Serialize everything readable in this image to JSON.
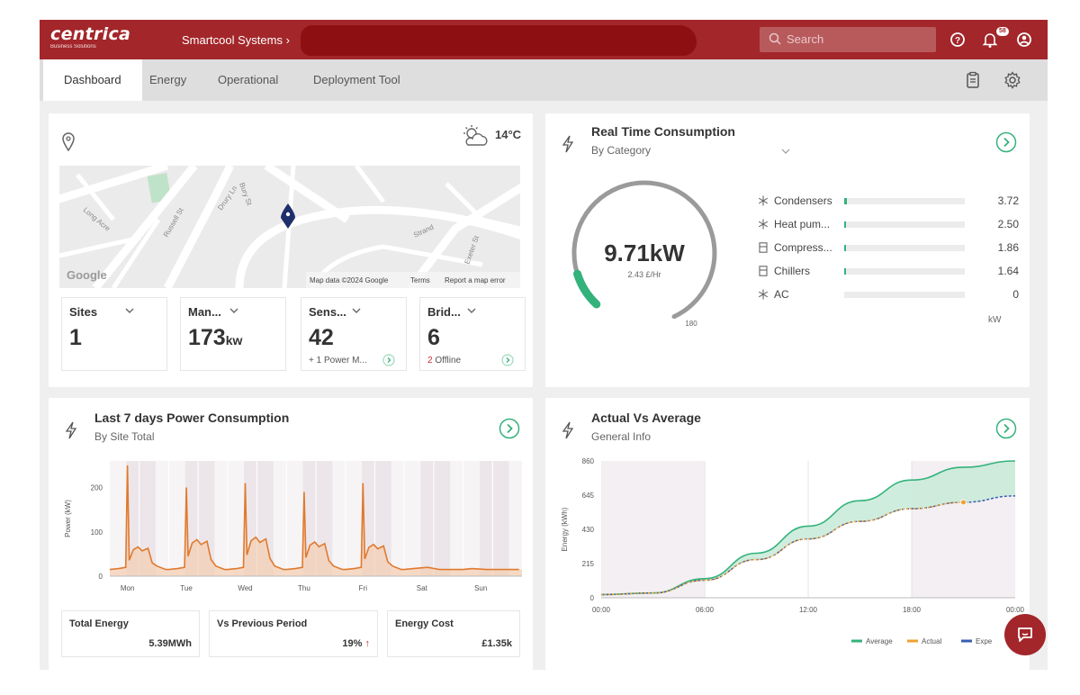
{
  "header": {
    "logo": "centrica",
    "logo_sub": "Business Solutions",
    "breadcrumb": "Smartcool Systems ›",
    "search_placeholder": "Search",
    "notification_count": "58"
  },
  "nav": {
    "tabs": [
      {
        "label": "Dashboard",
        "active": true
      },
      {
        "label": "Energy"
      },
      {
        "label": "Operational"
      },
      {
        "label": "Deployment Tool"
      }
    ]
  },
  "site_card": {
    "weather_temp": "14°C",
    "map_attribution": "Map data ©2024 Google",
    "map_terms": "Terms",
    "map_report": "Report a map error",
    "google_mark": "Google",
    "streets": [
      "Strand",
      "Bury St",
      "Drury Ln",
      "Russell St",
      "Exeter St",
      "Long Acre"
    ],
    "stats": [
      {
        "label": "Sites",
        "value": "1",
        "unit": "",
        "note": ""
      },
      {
        "label": "Man...",
        "value": "173",
        "unit": "kw",
        "note": ""
      },
      {
        "label": "Sens...",
        "value": "42",
        "unit": "",
        "note": "+ 1 Power M..."
      },
      {
        "label": "Brid...",
        "value": "6",
        "unit": "",
        "note_count": "2",
        "note": " Offline"
      }
    ]
  },
  "realtime": {
    "title": "Real Time Consumption",
    "subtitle": "By Category",
    "value": "9.71kW",
    "rate": "2.43 £/Hr",
    "gauge_max": "180",
    "gauge_fraction": 0.054,
    "unit": "kW",
    "categories": [
      {
        "name": "Condensers",
        "value": "3.72",
        "fraction": 0.02,
        "icon": "snowflake-icon"
      },
      {
        "name": "Heat pum...",
        "value": "2.50",
        "fraction": 0.014,
        "icon": "snowflake-icon"
      },
      {
        "name": "Compress...",
        "value": "1.86",
        "fraction": 0.01,
        "icon": "fridge-icon"
      },
      {
        "name": "Chillers",
        "value": "1.64",
        "fraction": 0.009,
        "icon": "fridge-icon"
      },
      {
        "name": "AC",
        "value": "0",
        "fraction": 0,
        "icon": "snowflake-icon"
      }
    ]
  },
  "power7d": {
    "title": "Last 7 days Power Consumption",
    "subtitle": "By Site Total",
    "ylabel": "Power (kW)",
    "yticks": [
      "0",
      "100",
      "200"
    ],
    "days": [
      "Mon",
      "Tue",
      "Wed",
      "Thu",
      "Fri",
      "Sat",
      "Sun"
    ],
    "summary": [
      {
        "label": "Total Energy",
        "value": "5.39MWh"
      },
      {
        "label": "Vs Previous Period",
        "value": "19%",
        "arrow": "↑"
      },
      {
        "label": "Energy Cost",
        "value": "£1.35k"
      }
    ]
  },
  "actual_avg": {
    "title": "Actual Vs Average",
    "subtitle": "General Info",
    "ylabel": "Energy (kWh)",
    "yticks": [
      "0",
      "215",
      "430",
      "645",
      "860"
    ],
    "xticks": [
      "00:00",
      "06:00",
      "12:00",
      "18:00",
      "00:00"
    ],
    "legend": [
      "Average",
      "Actual",
      "Expe"
    ],
    "colors": {
      "average": "#34b27b",
      "actual": "#f0a030",
      "expected": "#3a5fb0"
    }
  },
  "chart_data": [
    {
      "type": "area",
      "title": "Last 7 days Power Consumption",
      "ylabel": "Power (kW)",
      "categories": [
        "Mon",
        "Tue",
        "Wed",
        "Thu",
        "Fri",
        "Sat",
        "Sun"
      ],
      "ylim": [
        0,
        260
      ],
      "peaks": [
        250,
        200,
        210,
        190,
        210,
        20,
        15
      ],
      "daytime_level": [
        60,
        75,
        80,
        70,
        65,
        15,
        15
      ],
      "night_level": [
        15,
        15,
        15,
        15,
        15,
        15,
        15
      ]
    },
    {
      "type": "line",
      "title": "Actual Vs Average",
      "ylabel": "Energy (kWh)",
      "ylim": [
        0,
        860
      ],
      "x": [
        "00:00",
        "03:00",
        "06:00",
        "09:00",
        "12:00",
        "15:00",
        "18:00",
        "21:00",
        "24:00"
      ],
      "series": [
        {
          "name": "Average",
          "values": [
            20,
            30,
            120,
            280,
            450,
            610,
            740,
            820,
            860
          ]
        },
        {
          "name": "Actual",
          "values": [
            20,
            30,
            110,
            240,
            370,
            480,
            560,
            600,
            null
          ]
        },
        {
          "name": "Expe",
          "values": [
            20,
            30,
            110,
            240,
            370,
            480,
            560,
            600,
            640
          ]
        }
      ]
    }
  ]
}
